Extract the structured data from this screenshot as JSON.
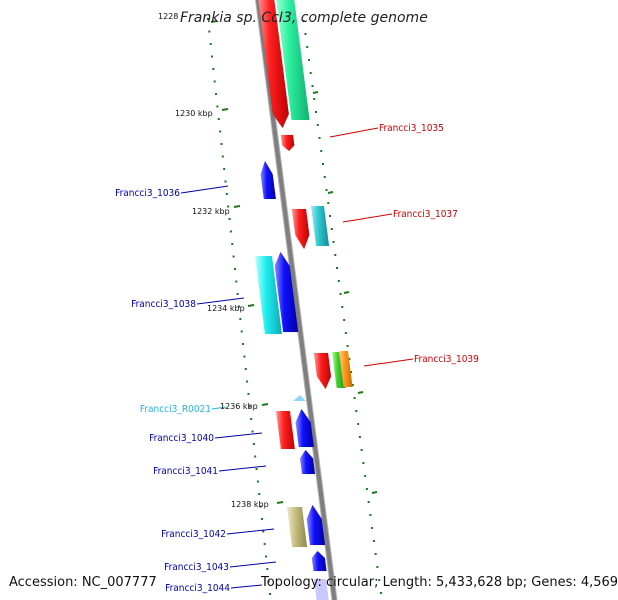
{
  "title": "Frankia sp. CcI3, complete genome",
  "footer": {
    "accession": "Accession: NC_007777",
    "summary": "Topology: circular; Length: 5,433,628 bp; Genes: 4,569"
  },
  "colors": {
    "backbone": "#7f7f7f",
    "tick": "#1a7a1a",
    "label_red": "#cc0000",
    "label_blue": "#0000aa",
    "label_cyan": "#22b3e6"
  },
  "ticks": [
    {
      "label": "1228"
    },
    {
      "label": "1230 kbp"
    },
    {
      "label": "1232 kbp"
    },
    {
      "label": "1234 kbp"
    },
    {
      "label": "1236 kbp"
    },
    {
      "label": "1238 kbp"
    }
  ],
  "genes": [
    {
      "name": "Francci3_1035",
      "color": "red"
    },
    {
      "name": "Francci3_1036",
      "color": "blue"
    },
    {
      "name": "Francci3_1037",
      "color": "red"
    },
    {
      "name": "Francci3_1038",
      "color": "blue"
    },
    {
      "name": "Francci3_1039",
      "color": "red"
    },
    {
      "name": "Francci3_R0021",
      "color": "cyan"
    },
    {
      "name": "Francci3_1040",
      "color": "blue"
    },
    {
      "name": "Francci3_1041",
      "color": "blue"
    },
    {
      "name": "Francci3_1042",
      "color": "blue"
    },
    {
      "name": "Francci3_1043",
      "color": "blue"
    },
    {
      "name": "Francci3_1044",
      "color": "blue"
    }
  ]
}
